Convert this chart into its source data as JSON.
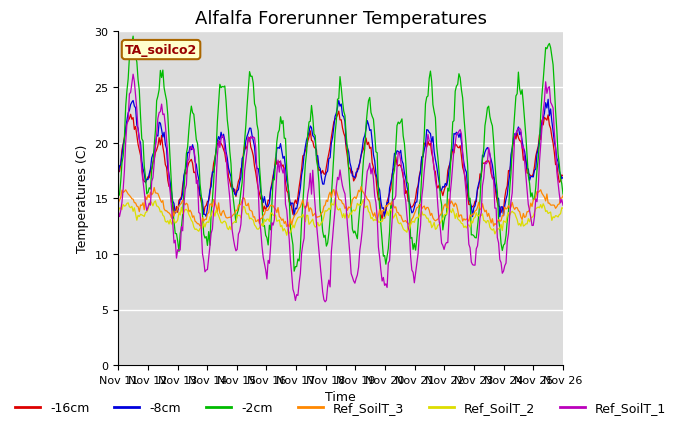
{
  "title": "Alfalfa Forerunner Temperatures",
  "xlabel": "Time",
  "ylabel": "Temperatures (C)",
  "ylim": [
    0,
    30
  ],
  "background_color": "#dcdcdc",
  "annotation": "TA_soilco2",
  "x_tick_labels": [
    "Nov 11",
    "Nov 12",
    "Nov 13",
    "Nov 14",
    "Nov 15",
    "Nov 16",
    "Nov 17",
    "Nov 18",
    "Nov 19",
    "Nov 20",
    "Nov 21",
    "Nov 22",
    "Nov 23",
    "Nov 24",
    "Nov 25",
    "Nov 26"
  ],
  "series_order": [
    "-16cm",
    "-8cm",
    "-2cm",
    "Ref_SoilT_3",
    "Ref_SoilT_2",
    "Ref_SoilT_1"
  ],
  "series": {
    "-16cm": {
      "color": "#dd0000"
    },
    "-8cm": {
      "color": "#0000dd"
    },
    "-2cm": {
      "color": "#00bb00"
    },
    "Ref_SoilT_3": {
      "color": "#ff8800"
    },
    "Ref_SoilT_2": {
      "color": "#dddd00"
    },
    "Ref_SoilT_1": {
      "color": "#bb00bb"
    }
  },
  "title_fontsize": 13,
  "tick_fontsize": 8,
  "legend_fontsize": 9,
  "yticks": [
    0,
    5,
    10,
    15,
    20,
    25,
    30
  ]
}
